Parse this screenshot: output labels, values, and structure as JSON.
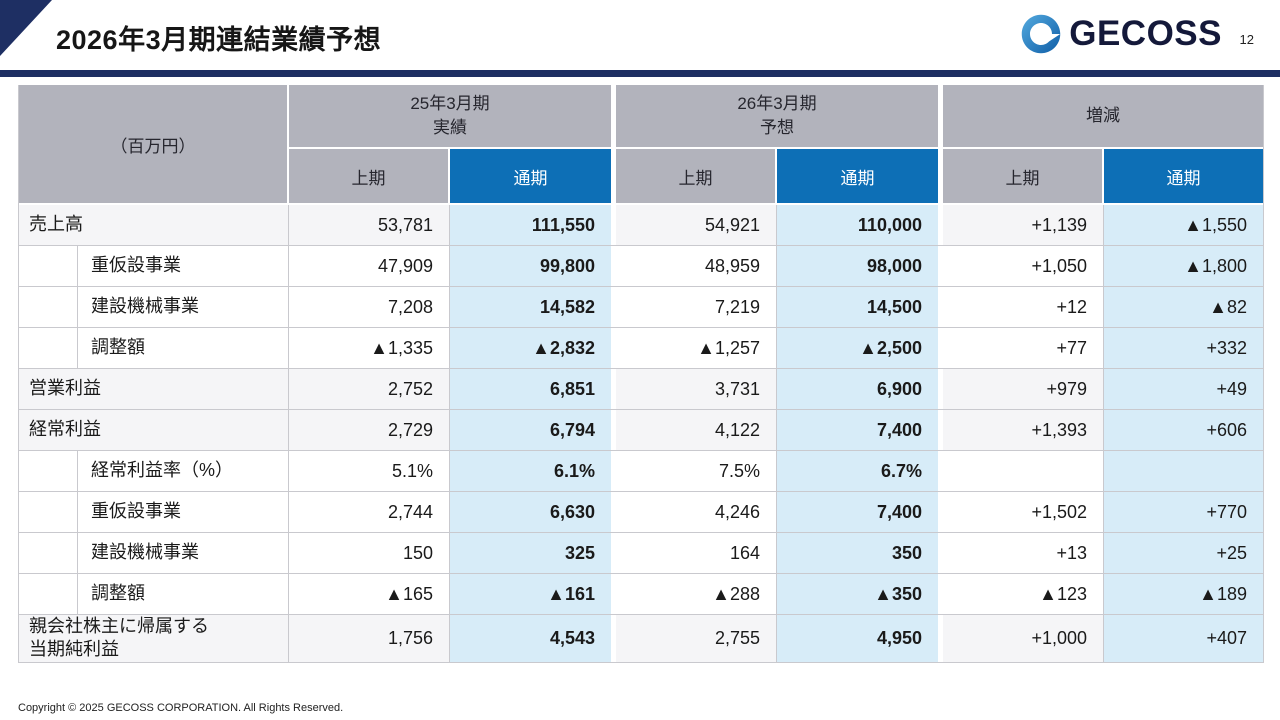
{
  "slide": {
    "title": "2026年3月期連結業績予想",
    "page_number": "12",
    "logo_text": "GECOSS",
    "copyright": "Copyright © 2025 GECOSS CORPORATION. All Rights Reserved."
  },
  "colors": {
    "accent_navy": "#1e2f63",
    "header_gray": "#b2b3bc",
    "header_blue": "#0d6fb6",
    "cell_light_blue": "#d7ecf8"
  },
  "table": {
    "unit_label": "（百万円）",
    "groups": [
      {
        "label": "25年3月期\n実績"
      },
      {
        "label": "26年3月期\n予想"
      },
      {
        "label": "増減"
      }
    ],
    "sub_headers": {
      "h1": "上期",
      "h2": "通期"
    },
    "rows": [
      {
        "label": "売上高",
        "indent": false,
        "values": [
          "53,781",
          "111,550",
          "54,921",
          "110,000",
          "+1,139",
          "▲1,550"
        ]
      },
      {
        "label": "重仮設事業",
        "indent": true,
        "values": [
          "47,909",
          "99,800",
          "48,959",
          "98,000",
          "+1,050",
          "▲1,800"
        ]
      },
      {
        "label": "建設機械事業",
        "indent": true,
        "values": [
          "7,208",
          "14,582",
          "7,219",
          "14,500",
          "+12",
          "▲82"
        ]
      },
      {
        "label": "調整額",
        "indent": true,
        "values": [
          "▲1,335",
          "▲2,832",
          "▲1,257",
          "▲2,500",
          "+77",
          "+332"
        ]
      },
      {
        "label": "営業利益",
        "indent": false,
        "values": [
          "2,752",
          "6,851",
          "3,731",
          "6,900",
          "+979",
          "+49"
        ]
      },
      {
        "label": "経常利益",
        "indent": false,
        "values": [
          "2,729",
          "6,794",
          "4,122",
          "7,400",
          "+1,393",
          "+606"
        ]
      },
      {
        "label": "経常利益率（%）",
        "indent": true,
        "values": [
          "5.1%",
          "6.1%",
          "7.5%",
          "6.7%",
          "",
          ""
        ]
      },
      {
        "label": "重仮設事業",
        "indent": true,
        "values": [
          "2,744",
          "6,630",
          "4,246",
          "7,400",
          "+1,502",
          "+770"
        ]
      },
      {
        "label": "建設機械事業",
        "indent": true,
        "values": [
          "150",
          "325",
          "164",
          "350",
          "+13",
          "+25"
        ]
      },
      {
        "label": "調整額",
        "indent": true,
        "values": [
          "▲165",
          "▲161",
          "▲288",
          "▲350",
          "▲123",
          "▲189"
        ]
      },
      {
        "label": "親会社株主に帰属する\n当期純利益",
        "indent": false,
        "values": [
          "1,756",
          "4,543",
          "2,755",
          "4,950",
          "+1,000",
          "+407"
        ]
      }
    ]
  }
}
